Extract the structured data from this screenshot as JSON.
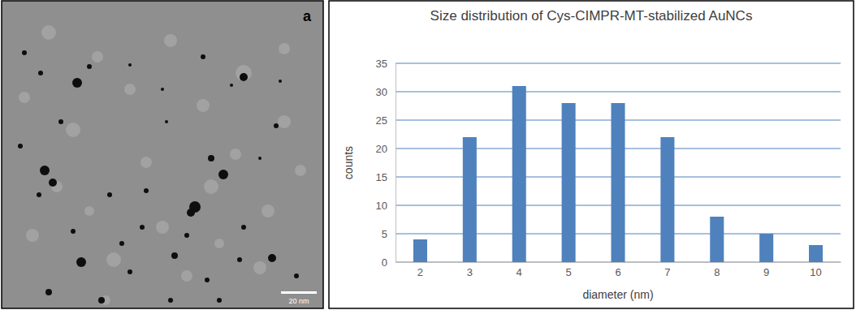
{
  "image_panel": {
    "label": "a",
    "scale_bar_label": "20 nm"
  },
  "chart_data": {
    "type": "bar",
    "title": "Size distribution of Cys-CIMPR-MT-stabilized AuNCs",
    "x_label": "diameter (nm)",
    "y_label": "counts",
    "categories": [
      "2",
      "3",
      "4",
      "5",
      "6",
      "7",
      "8",
      "9",
      "10"
    ],
    "values": [
      4,
      22,
      31,
      28,
      28,
      22,
      8,
      5,
      3
    ],
    "color": "#4f81bd",
    "ylim": [
      0,
      35
    ],
    "yticks": [
      0,
      5,
      10,
      15,
      20,
      25,
      30,
      35
    ],
    "grid": true
  }
}
